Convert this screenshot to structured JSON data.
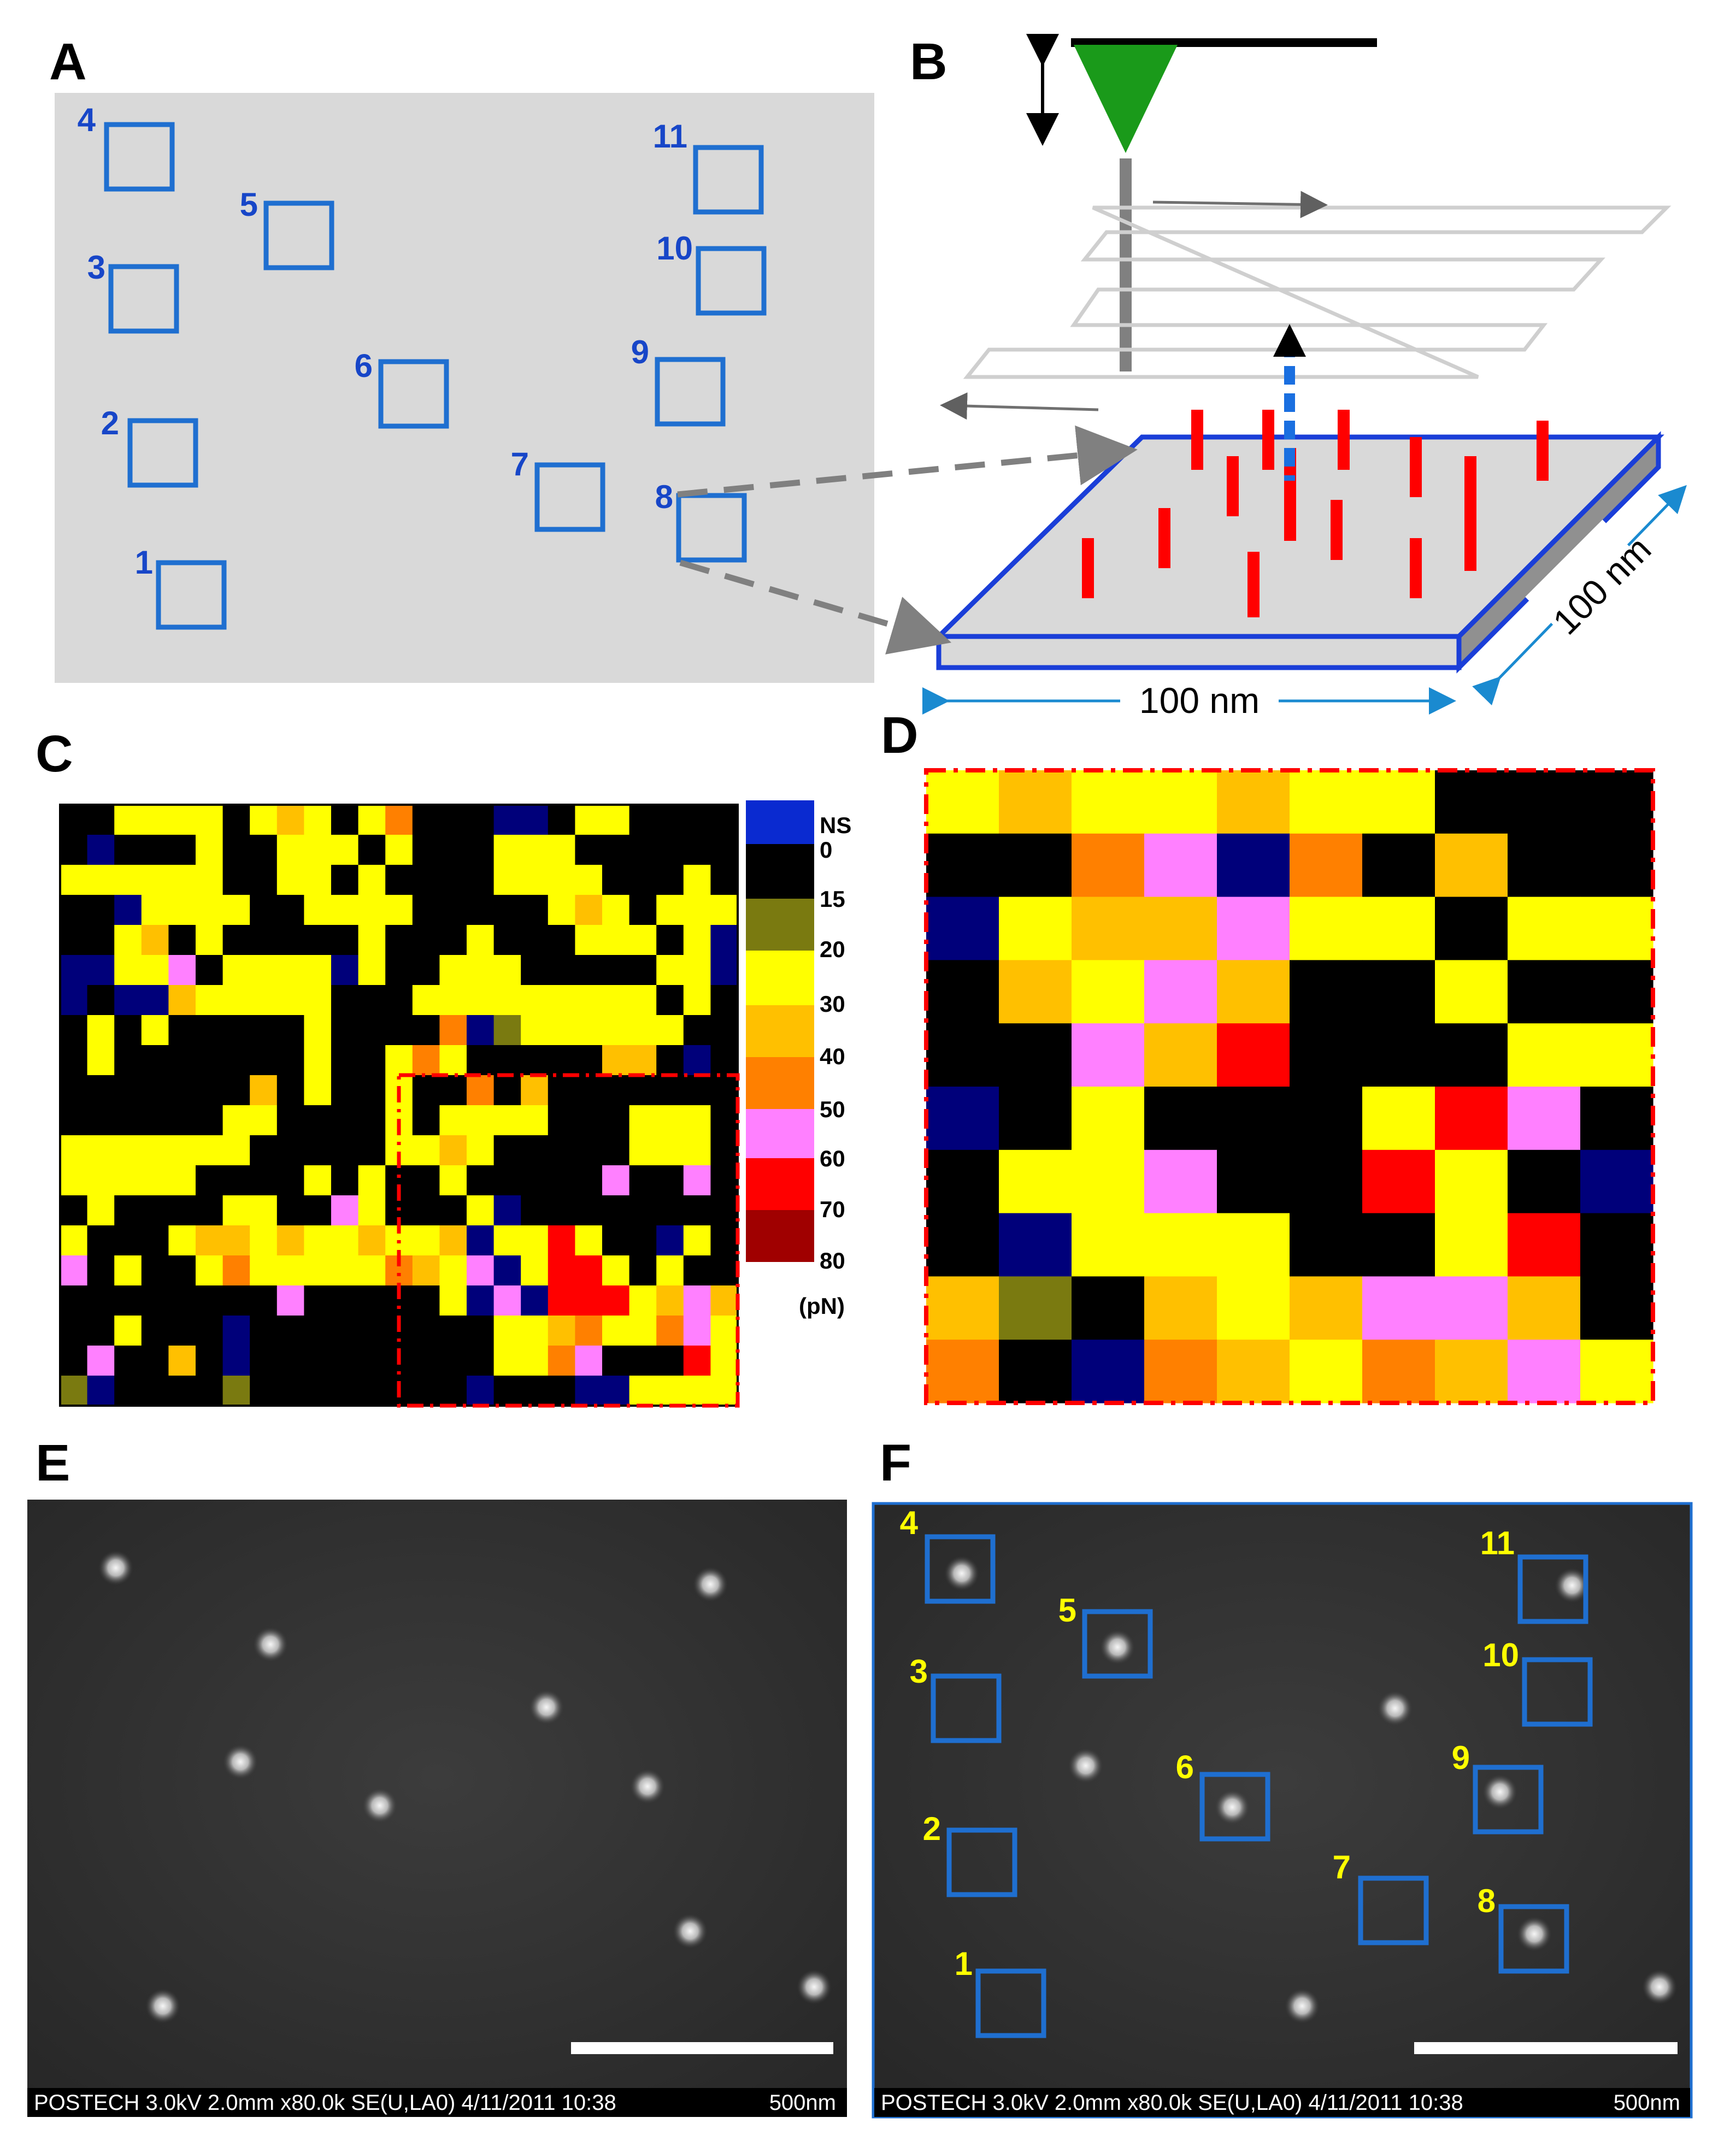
{
  "panels": {
    "A": {
      "label": "A",
      "regions": [
        "1",
        "2",
        "3",
        "4",
        "5",
        "6",
        "7",
        "8",
        "9",
        "10",
        "11"
      ]
    },
    "B": {
      "label": "B",
      "dimension_x": "100 nm",
      "dimension_y": "100 nm"
    },
    "C": {
      "label": "C"
    },
    "D": {
      "label": "D"
    },
    "E": {
      "label": "E",
      "sem_info": "POSTECH 3.0kV 2.0mm x80.0k SE(U,LA0) 4/11/2011 10:38",
      "scale": "500nm"
    },
    "F": {
      "label": "F",
      "regions": [
        "1",
        "2",
        "3",
        "4",
        "5",
        "6",
        "7",
        "8",
        "9",
        "10",
        "11"
      ],
      "sem_info": "POSTECH 3.0kV 2.0mm x80.0k SE(U,LA0) 4/11/2011 10:38",
      "scale": "500nm"
    }
  },
  "colorbar": {
    "labels": [
      "NS",
      "0",
      "15",
      "20",
      "30",
      "40",
      "50",
      "60",
      "70",
      "80"
    ],
    "unit": "(pN)",
    "colors": {
      "NS": "#0a2ad0",
      "0-15": "#000000",
      "15-20": "#7a7a10",
      "20-30": "#ffff00",
      "30-40": "#ffc000",
      "40-50": "#ff8000",
      "50-60": "#ff80ff",
      "60-70": "#ff0000",
      "70-80": "#a00000",
      "N": "#00007a"
    }
  },
  "colors": {
    "box_blue": "#1f6fd0",
    "number_blue": "#1746c8",
    "number_yellow": "#ffff00",
    "tip_green": "#1a9a1a",
    "molecule_red": "#ff0000",
    "dashed_red": "#ff0000"
  },
  "grid_C": [
    "KKYYYYKYOYKYOKKKNNKYYKKKK",
    "KNKKKYKKYYYKYKKKYYYKKKKKK",
    "YYYYYYKKYYKYKKKKYYYYKKKYK",
    "KKNYYYYKKYYYYKKKKKYOYKYYY",
    "KKYOKYKKKKKYKKKYKKKYYYKYN",
    "NNYYPKYYYYNYKKYYYKKKKKYYN",
    "NKNNOYYYYYKKKYYYYYYYYYKYK",
    "KYKYKKKKKYKKKKONGYYYYYYKK",
    "KYKKKKKKKYKKYOYKKKKKOOKNK",
    "KKKKKKKOKYKKYKKOKOKKKKKKK",
    "KKKKKKYYKKKKYKYYYYKKKYYYK",
    "YYYYYYYKKKKKYYOYKKKKKYYYK",
    "YYYYYKKKKYKYKKYKKKKKPKKPK",
    "KYKKKKYYKKPYKKKYNKKKKKKKK",
    "YKKKYOOYOYYOYYONYYRYKKNYK",
    "PKYKKYOYYYYYOOYPNYRRYKYKK",
    "KKKKKKKKPKKKKKYNPNRRRYOPO",
    "KKYKKKNKKKKKKKKKYYOOYYOPY",
    "KPKKOKNKKKKKKKKKYYOPKKKRY",
    "GNKKKKGKKKKKKKKNKKKNNYYYY"
  ],
  "grid_D": [
    "YOYYOYYKKK",
    "KKOPNOKOKK",
    "NYOOPYYKYY",
    "KOYPOKKYKK",
    "KKPORKKKYY",
    "NKYKKKYRPK",
    "KYYPKKRYKN",
    "KNYYYKKYRK",
    "OGKOYOPPOK",
    "OKNOOYOOPY"
  ]
}
